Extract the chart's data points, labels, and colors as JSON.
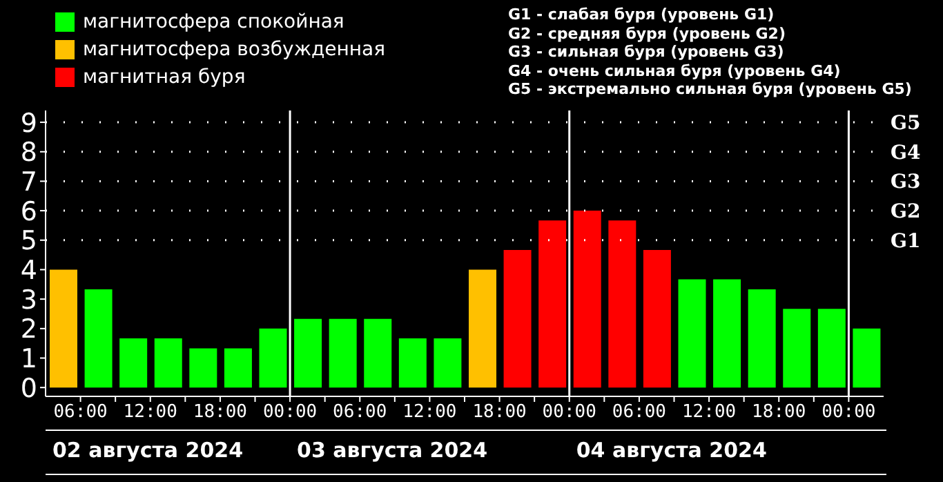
{
  "chart_data": {
    "type": "bar",
    "stacked": true,
    "x": [
      "2024-08-02T04:30",
      "2024-08-02T07:30",
      "2024-08-02T10:30",
      "2024-08-02T13:30",
      "2024-08-02T16:30",
      "2024-08-02T19:30",
      "2024-08-02T22:30",
      "2024-08-03T01:30",
      "2024-08-03T04:30",
      "2024-08-03T07:30",
      "2024-08-03T10:30",
      "2024-08-03T13:30",
      "2024-08-03T16:30",
      "2024-08-03T19:30",
      "2024-08-03T22:30",
      "2024-08-04T01:30",
      "2024-08-04T04:30",
      "2024-08-04T07:30",
      "2024-08-04T10:30",
      "2024-08-04T13:30",
      "2024-08-04T16:30",
      "2024-08-04T19:30",
      "2024-08-04T22:30",
      "2024-08-05T01:30"
    ],
    "series": [
      {
        "name": "магнитосфера спокойная",
        "color": "#00ff00",
        "values": [
          null,
          3.33,
          1.67,
          1.67,
          1.33,
          1.33,
          2,
          2.33,
          2.33,
          2.33,
          1.67,
          1.67,
          null,
          null,
          null,
          null,
          null,
          null,
          3.67,
          3.67,
          3.33,
          2.67,
          2.67,
          2
        ]
      },
      {
        "name": "магнитосфера возбужденная",
        "color": "#ffc000",
        "values": [
          4,
          null,
          null,
          null,
          null,
          null,
          null,
          null,
          null,
          null,
          null,
          null,
          4,
          null,
          null,
          null,
          null,
          null,
          null,
          null,
          null,
          null,
          null,
          null
        ]
      },
      {
        "name": "магнитная буря",
        "color": "#ff0000",
        "values": [
          null,
          null,
          null,
          null,
          null,
          null,
          null,
          null,
          null,
          null,
          null,
          null,
          null,
          4.67,
          5.67,
          6,
          5.67,
          4.67,
          null,
          null,
          null,
          null,
          null,
          null
        ]
      }
    ],
    "xlim": [
      "2024-08-02T03:00",
      "2024-08-05T03:00"
    ],
    "xticks": [
      {
        "value": "2024-08-02T06:00",
        "label": "06:00"
      },
      {
        "value": "2024-08-02T09:00",
        "label": null
      },
      {
        "value": "2024-08-02T12:00",
        "label": "12:00"
      },
      {
        "value": "2024-08-02T15:00",
        "label": null
      },
      {
        "value": "2024-08-02T18:00",
        "label": "18:00"
      },
      {
        "value": "2024-08-02T21:00",
        "label": null
      },
      {
        "value": "2024-08-03T00:00",
        "label": "00:00"
      },
      {
        "value": "2024-08-03T03:00",
        "label": null
      },
      {
        "value": "2024-08-03T06:00",
        "label": "06:00"
      },
      {
        "value": "2024-08-03T09:00",
        "label": null
      },
      {
        "value": "2024-08-03T12:00",
        "label": "12:00"
      },
      {
        "value": "2024-08-03T15:00",
        "label": null
      },
      {
        "value": "2024-08-03T18:00",
        "label": "18:00"
      },
      {
        "value": "2024-08-03T21:00",
        "label": null
      },
      {
        "value": "2024-08-04T00:00",
        "label": "00:00"
      },
      {
        "value": "2024-08-04T03:00",
        "label": null
      },
      {
        "value": "2024-08-04T06:00",
        "label": "06:00"
      },
      {
        "value": "2024-08-04T09:00",
        "label": null
      },
      {
        "value": "2024-08-04T12:00",
        "label": "12:00"
      },
      {
        "value": "2024-08-04T15:00",
        "label": null
      },
      {
        "value": "2024-08-04T18:00",
        "label": "18:00"
      },
      {
        "value": "2024-08-04T21:00",
        "label": null
      },
      {
        "value": "2024-08-05T00:00",
        "label": "00:00"
      }
    ],
    "ylim": [
      -0.3,
      9.4
    ],
    "yticks": [
      0,
      1,
      2,
      3,
      4,
      5,
      6,
      7,
      8,
      9
    ],
    "ref_lines": [
      {
        "axis": "y",
        "value": 5,
        "label": "G1",
        "color": "#ffffff",
        "line_style": "dotted"
      },
      {
        "axis": "y",
        "value": 6,
        "label": "G2",
        "color": "#ffffff",
        "line_style": "dotted"
      },
      {
        "axis": "y",
        "value": 7,
        "label": "G3",
        "color": "#ffffff",
        "line_style": "dotted"
      },
      {
        "axis": "y",
        "value": 8,
        "label": "G4",
        "color": "#ffffff",
        "line_style": "dotted"
      },
      {
        "axis": "y",
        "value": 9,
        "label": "G5",
        "color": "#ffffff",
        "line_style": "dotted"
      },
      {
        "axis": "x",
        "value": "2024-08-03T00:00",
        "color": "#ffffff",
        "line_style": "solid"
      },
      {
        "axis": "x",
        "value": "2024-08-04T00:00",
        "color": "#ffffff",
        "line_style": "solid"
      },
      {
        "axis": "x",
        "value": "2024-08-05T00:00",
        "color": "#ffffff",
        "line_style": "solid"
      }
    ],
    "legend": "top left",
    "annotations": [
      "G1 - слабая буря (уровень G1)",
      "G2 - средняя буря (уровень G2)",
      "G3 - сильная буря (уровень G3)",
      "G4 - очень сильная буря (уровень G4)",
      "G5 - экстремально сильная буря (уровень G5)",
      "02 августа 2024",
      "03 августа 2024",
      "04 августа 2024"
    ]
  }
}
